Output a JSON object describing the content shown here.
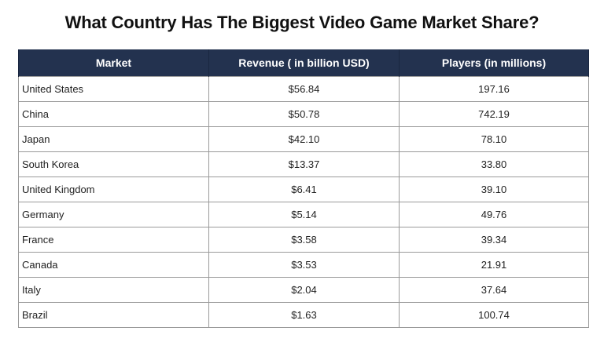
{
  "title": "What Country Has The Biggest Video Game Market Share?",
  "colors": {
    "header_bg": "#23324f",
    "header_text": "#ffffff",
    "border": "#9a9a9a"
  },
  "table": {
    "headers": [
      "Market",
      "Revenue ( in billion USD)",
      "Players (in millions)"
    ],
    "rows": [
      {
        "market": "United States",
        "revenue": "$56.84",
        "players": "197.16"
      },
      {
        "market": "China",
        "revenue": "$50.78",
        "players": "742.19"
      },
      {
        "market": "Japan",
        "revenue": "$42.10",
        "players": "78.10"
      },
      {
        "market": "South Korea",
        "revenue": "$13.37",
        "players": "33.80"
      },
      {
        "market": "United Kingdom",
        "revenue": "$6.41",
        "players": "39.10"
      },
      {
        "market": "Germany",
        "revenue": "$5.14",
        "players": "49.76"
      },
      {
        "market": "France",
        "revenue": "$3.58",
        "players": "39.34"
      },
      {
        "market": "Canada",
        "revenue": "$3.53",
        "players": "21.91"
      },
      {
        "market": "Italy",
        "revenue": "$2.04",
        "players": "37.64"
      },
      {
        "market": "Brazil",
        "revenue": "$1.63",
        "players": "100.74"
      }
    ]
  }
}
